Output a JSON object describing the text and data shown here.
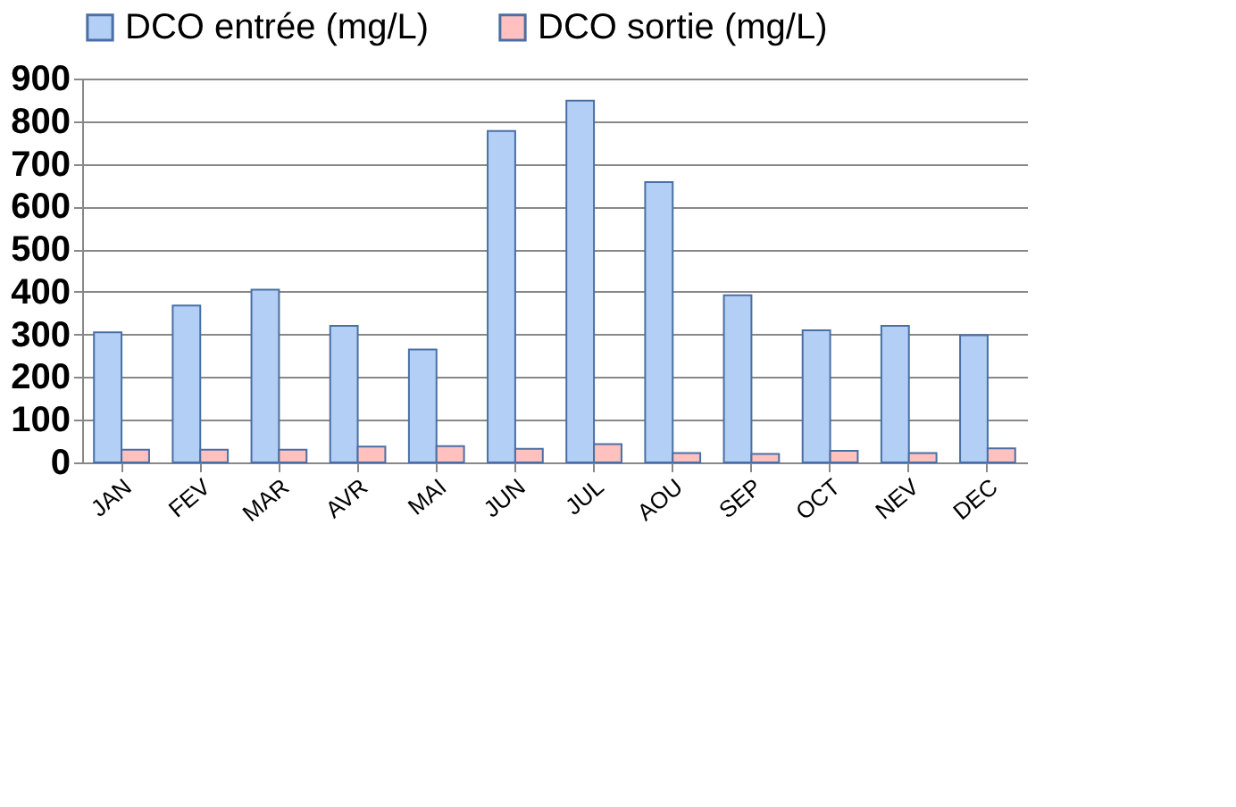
{
  "chart_data": {
    "type": "bar",
    "categories": [
      "JAN",
      "FEV",
      "MAR",
      "AVR",
      "MAI",
      "JUN",
      "JUL",
      "AOU",
      "SEP",
      "OCT",
      "NEV",
      "DEC"
    ],
    "series": [
      {
        "name": "DCO  entrée (mg/L)",
        "color": "#b4cff5",
        "values": [
          305,
          368,
          405,
          320,
          265,
          777,
          848,
          657,
          392,
          310,
          320,
          298
        ]
      },
      {
        "name": "DCO sortie (mg/L)",
        "color": "#ffc0c0",
        "values": [
          30,
          30,
          30,
          37,
          38,
          32,
          43,
          22,
          20,
          27,
          22,
          33
        ]
      }
    ],
    "ylim": [
      0,
      900
    ],
    "yticks": [
      0,
      100,
      200,
      300,
      400,
      500,
      600,
      700,
      800,
      900
    ],
    "grid": "y",
    "legend": "top"
  }
}
